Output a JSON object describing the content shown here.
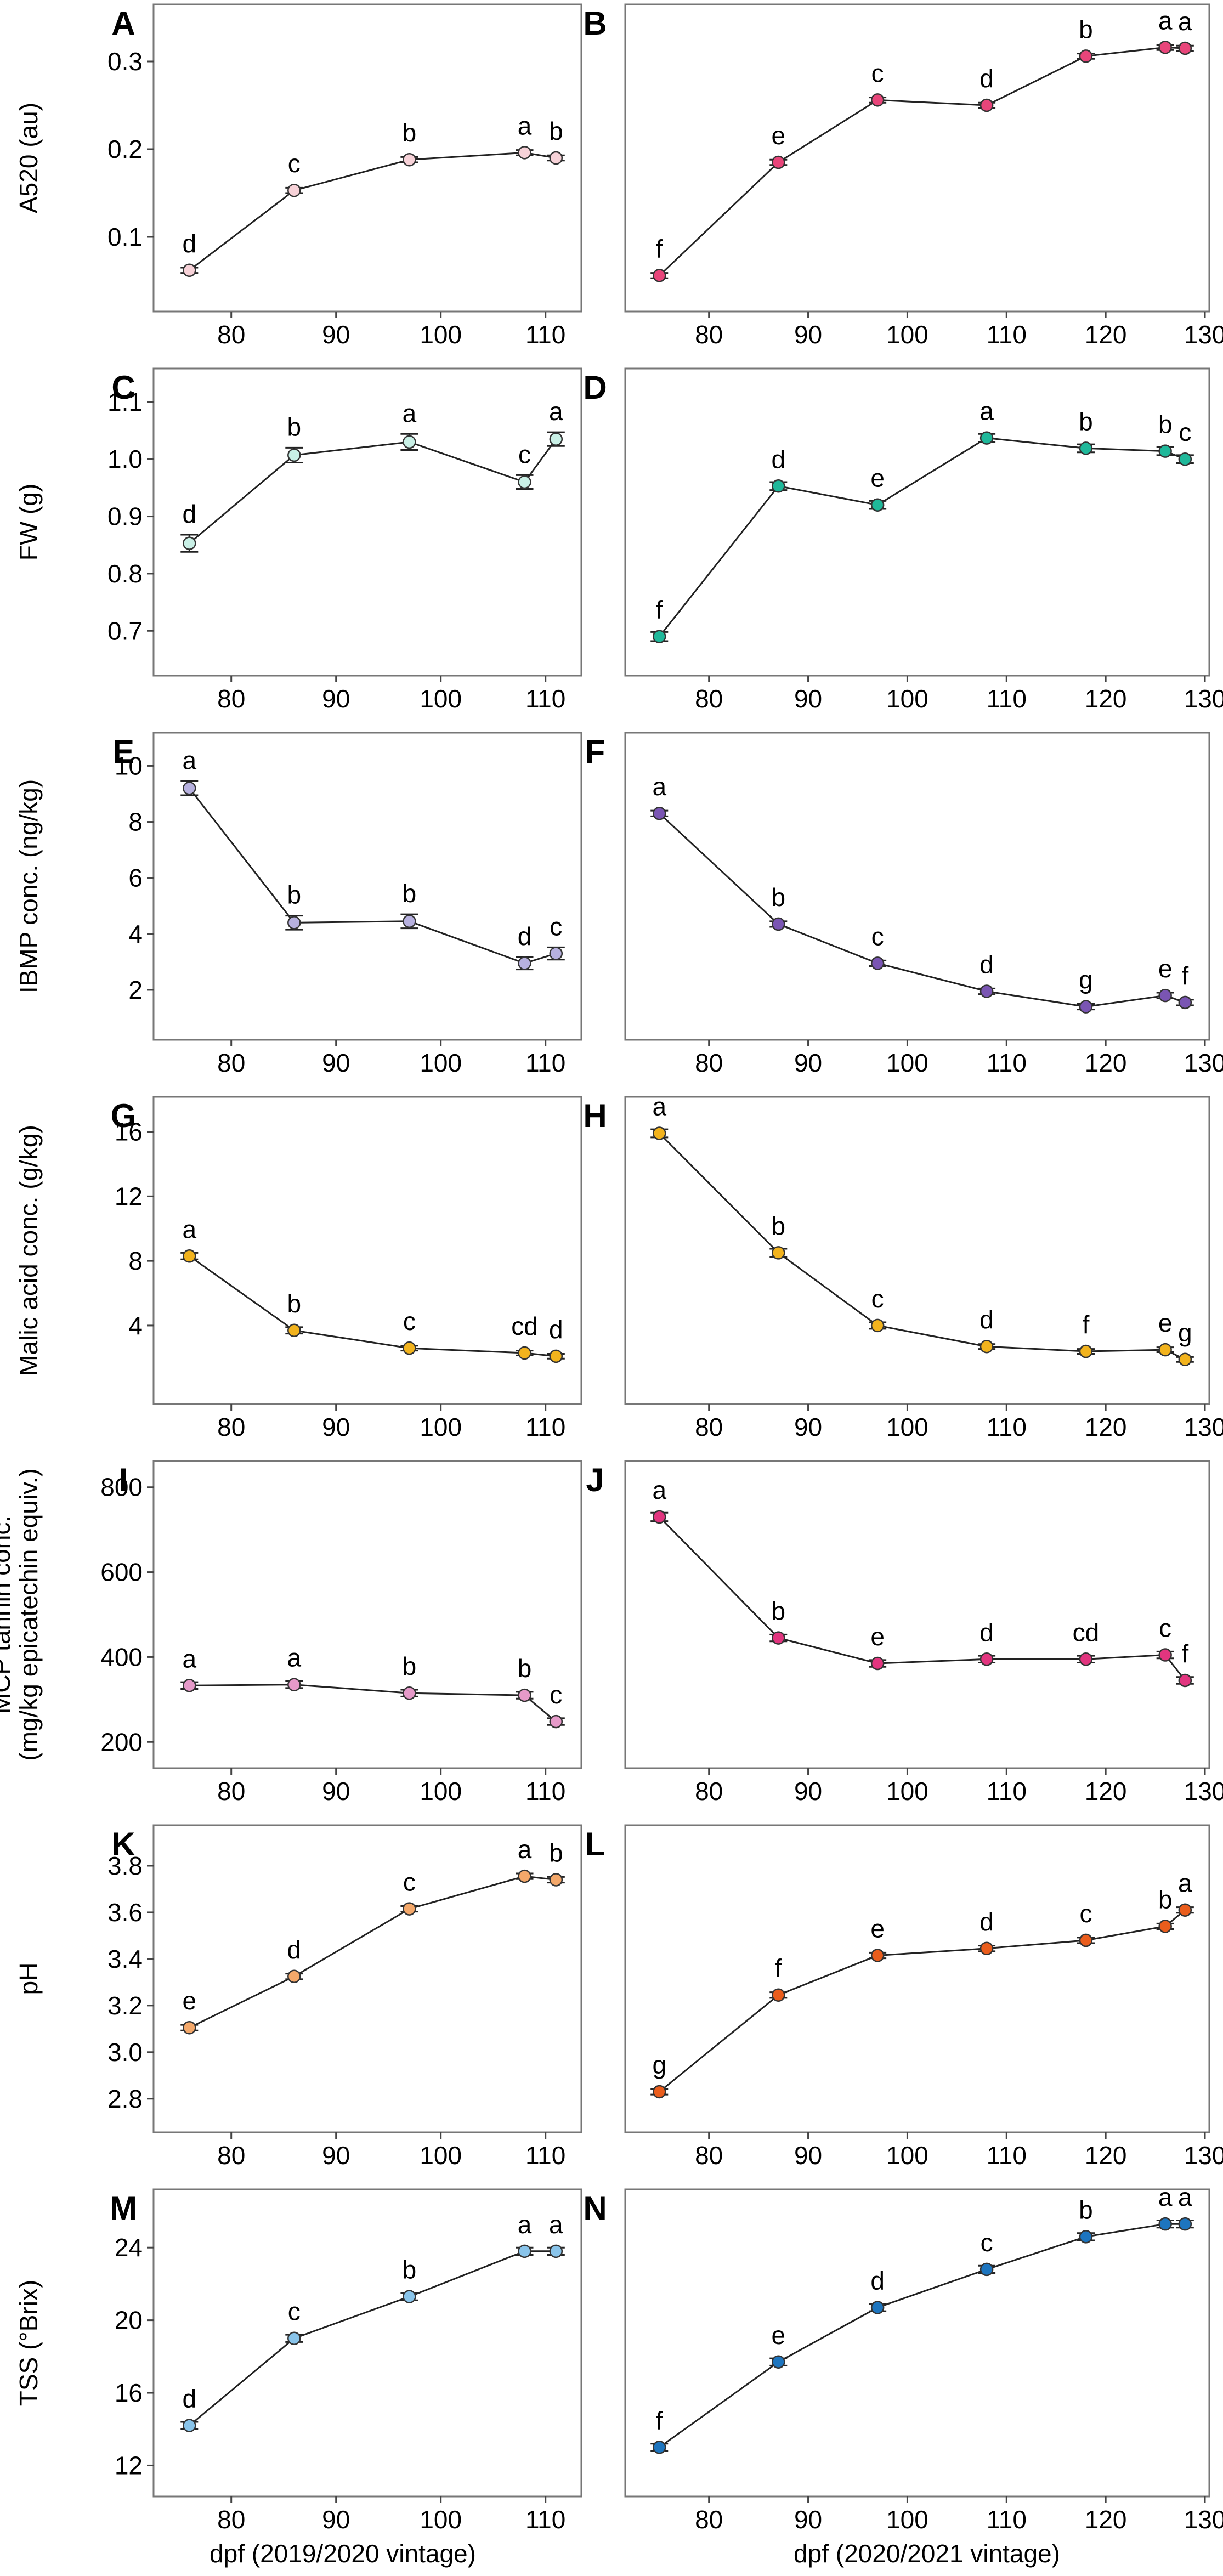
{
  "figure": {
    "x_label_left": "dpf (2019/2020 vintage)",
    "x_label_right": "dpf (2020/2021 vintage)"
  },
  "chart_data": [
    {
      "panel": "A",
      "type": "line",
      "row": 0,
      "col": 0,
      "ylabel": [
        "A520 (au)"
      ],
      "color": "#f7d2d8",
      "xlim": [
        73,
        113
      ],
      "xticks": [
        80,
        90,
        100,
        110
      ],
      "ylim": [
        0.04,
        0.34
      ],
      "yticks": [
        0.1,
        0.2,
        0.3
      ],
      "yfmt": 1,
      "x": [
        76,
        86,
        97,
        108,
        111
      ],
      "y": [
        0.062,
        0.153,
        0.188,
        0.196,
        0.19
      ],
      "err": [
        0.003,
        0.003,
        0.003,
        0.003,
        0.003
      ],
      "letters": [
        "d",
        "c",
        "b",
        "a",
        "b"
      ]
    },
    {
      "panel": "B",
      "type": "line",
      "row": 0,
      "col": 1,
      "ylabel": [],
      "color": "#e8457a",
      "xlim": [
        72,
        130
      ],
      "xticks": [
        80,
        90,
        100,
        110,
        120,
        130
      ],
      "ylim": [
        0.04,
        0.34
      ],
      "yticks": [],
      "yfmt": 0,
      "x": [
        75,
        87,
        97,
        108,
        118,
        126,
        128
      ],
      "y": [
        0.056,
        0.185,
        0.256,
        0.25,
        0.306,
        0.316,
        0.315
      ],
      "err": [
        0.003,
        0.003,
        0.003,
        0.003,
        0.003,
        0.003,
        0.003
      ],
      "letters": [
        "f",
        "e",
        "c",
        "d",
        "b",
        "a",
        "a"
      ]
    },
    {
      "panel": "C",
      "type": "line",
      "row": 1,
      "col": 0,
      "ylabel": [
        "FW (g)"
      ],
      "color": "#c9f0e6",
      "xlim": [
        73,
        113
      ],
      "xticks": [
        80,
        90,
        100,
        110
      ],
      "ylim": [
        0.66,
        1.12
      ],
      "yticks": [
        0.7,
        0.8,
        0.9,
        1.0,
        1.1
      ],
      "yfmt": 1,
      "x": [
        76,
        86,
        97,
        108,
        111
      ],
      "y": [
        0.853,
        1.007,
        1.03,
        0.96,
        1.035
      ],
      "err": [
        0.015,
        0.013,
        0.014,
        0.012,
        0.012
      ],
      "letters": [
        "d",
        "b",
        "a",
        "c",
        "a"
      ]
    },
    {
      "panel": "D",
      "type": "line",
      "row": 1,
      "col": 1,
      "ylabel": [],
      "color": "#1fb89a",
      "xlim": [
        72,
        130
      ],
      "xticks": [
        80,
        90,
        100,
        110,
        120,
        130
      ],
      "ylim": [
        0.66,
        1.12
      ],
      "yticks": [],
      "yfmt": 0,
      "x": [
        75,
        87,
        97,
        108,
        118,
        126,
        128
      ],
      "y": [
        0.69,
        0.953,
        0.92,
        1.037,
        1.019,
        1.014,
        1.0
      ],
      "err": [
        0.008,
        0.007,
        0.007,
        0.007,
        0.007,
        0.007,
        0.007
      ],
      "letters": [
        "f",
        "d",
        "e",
        "a",
        "b",
        "b",
        "c"
      ]
    },
    {
      "panel": "E",
      "type": "line",
      "row": 2,
      "col": 0,
      "ylabel": [
        "IBMP conc. (ng/kg)"
      ],
      "color": "#b7b1df",
      "xlim": [
        73,
        113
      ],
      "xticks": [
        80,
        90,
        100,
        110
      ],
      "ylim": [
        1.0,
        10.4
      ],
      "yticks": [
        2,
        4,
        6,
        8,
        10
      ],
      "yfmt": 0,
      "x": [
        76,
        86,
        97,
        108,
        111
      ],
      "y": [
        9.2,
        4.4,
        4.45,
        2.95,
        3.3
      ],
      "err": [
        0.25,
        0.25,
        0.25,
        0.22,
        0.22
      ],
      "letters": [
        "a",
        "b",
        "b",
        "d",
        "c"
      ]
    },
    {
      "panel": "F",
      "type": "line",
      "row": 2,
      "col": 1,
      "ylabel": [],
      "color": "#7a55b3",
      "xlim": [
        72,
        130
      ],
      "xticks": [
        80,
        90,
        100,
        110,
        120,
        130
      ],
      "ylim": [
        1.0,
        10.4
      ],
      "yticks": [],
      "yfmt": 0,
      "x": [
        75,
        87,
        97,
        108,
        118,
        126,
        128
      ],
      "y": [
        8.3,
        4.35,
        2.95,
        1.95,
        1.4,
        1.8,
        1.55
      ],
      "err": [
        0.1,
        0.1,
        0.1,
        0.1,
        0.1,
        0.1,
        0.1
      ],
      "letters": [
        "a",
        "b",
        "c",
        "d",
        "g",
        "e",
        "f"
      ]
    },
    {
      "panel": "G",
      "type": "line",
      "row": 3,
      "col": 0,
      "ylabel": [
        "Malic acid conc. (g/kg)"
      ],
      "color": "#f2b31d",
      "xlim": [
        73,
        113
      ],
      "xticks": [
        80,
        90,
        100,
        110
      ],
      "ylim": [
        0.5,
        16.8
      ],
      "yticks": [
        4,
        8,
        12,
        16
      ],
      "yfmt": 0,
      "x": [
        76,
        86,
        97,
        108,
        111
      ],
      "y": [
        8.3,
        3.7,
        2.6,
        2.3,
        2.1
      ],
      "err": [
        0.2,
        0.2,
        0.15,
        0.15,
        0.15
      ],
      "letters": [
        "a",
        "b",
        "c",
        "cd",
        "d"
      ]
    },
    {
      "panel": "H",
      "type": "line",
      "row": 3,
      "col": 1,
      "ylabel": [],
      "color": "#f2b31d",
      "xlim": [
        72,
        130
      ],
      "xticks": [
        80,
        90,
        100,
        110,
        120,
        130
      ],
      "ylim": [
        0.5,
        16.8
      ],
      "yticks": [],
      "yfmt": 0,
      "x": [
        75,
        87,
        97,
        108,
        118,
        126,
        128
      ],
      "y": [
        15.9,
        8.5,
        4.0,
        2.7,
        2.4,
        2.5,
        1.9
      ],
      "err": [
        0.25,
        0.25,
        0.2,
        0.15,
        0.15,
        0.15,
        0.15
      ],
      "letters": [
        "a",
        "b",
        "c",
        "d",
        "f",
        "e",
        "g"
      ]
    },
    {
      "panel": "I",
      "type": "line",
      "row": 4,
      "col": 0,
      "ylabel": [
        "MCP tannin conc.",
        "(mg/kg epicatechin equiv.)"
      ],
      "color": "#e69ac9",
      "xlim": [
        73,
        113
      ],
      "xticks": [
        80,
        90,
        100,
        110
      ],
      "ylim": [
        190,
        810
      ],
      "yticks": [
        200,
        400,
        600,
        800
      ],
      "yfmt": 0,
      "x": [
        76,
        86,
        97,
        108,
        111
      ],
      "y": [
        333,
        335,
        315,
        310,
        248
      ],
      "err": [
        8,
        8,
        8,
        8,
        8
      ],
      "letters": [
        "a",
        "a",
        "b",
        "b",
        "c"
      ]
    },
    {
      "panel": "J",
      "type": "line",
      "row": 4,
      "col": 1,
      "ylabel": [],
      "color": "#e2357f",
      "xlim": [
        72,
        130
      ],
      "xticks": [
        80,
        90,
        100,
        110,
        120,
        130
      ],
      "ylim": [
        190,
        810
      ],
      "yticks": [],
      "yfmt": 0,
      "x": [
        75,
        87,
        97,
        108,
        118,
        126,
        128
      ],
      "y": [
        730,
        445,
        385,
        395,
        395,
        405,
        345
      ],
      "err": [
        10,
        8,
        8,
        8,
        8,
        8,
        8
      ],
      "letters": [
        "a",
        "b",
        "e",
        "d",
        "cd",
        "c",
        "f"
      ]
    },
    {
      "panel": "K",
      "type": "line",
      "row": 5,
      "col": 0,
      "ylabel": [
        "pH"
      ],
      "color": "#f4a86a",
      "xlim": [
        73,
        113
      ],
      "xticks": [
        80,
        90,
        100,
        110
      ],
      "ylim": [
        2.75,
        3.88
      ],
      "yticks": [
        2.8,
        3.0,
        3.2,
        3.4,
        3.6,
        3.8
      ],
      "yfmt": 1,
      "x": [
        76,
        86,
        97,
        108,
        111
      ],
      "y": [
        3.105,
        3.325,
        3.615,
        3.755,
        3.74
      ],
      "err": [
        0.012,
        0.012,
        0.012,
        0.012,
        0.012
      ],
      "letters": [
        "e",
        "d",
        "c",
        "a",
        "b"
      ]
    },
    {
      "panel": "L",
      "type": "line",
      "row": 5,
      "col": 1,
      "ylabel": [],
      "color": "#ea5d1c",
      "xlim": [
        72,
        130
      ],
      "xticks": [
        80,
        90,
        100,
        110,
        120,
        130
      ],
      "ylim": [
        2.75,
        3.88
      ],
      "yticks": [],
      "yfmt": 0,
      "x": [
        75,
        87,
        97,
        108,
        118,
        126,
        128
      ],
      "y": [
        2.83,
        3.245,
        3.415,
        3.445,
        3.48,
        3.54,
        3.61
      ],
      "err": [
        0.012,
        0.012,
        0.012,
        0.012,
        0.012,
        0.012,
        0.012
      ],
      "letters": [
        "g",
        "f",
        "e",
        "d",
        "c",
        "b",
        "a"
      ]
    },
    {
      "panel": "M",
      "type": "line",
      "row": 6,
      "col": 0,
      "ylabel": [
        "TSS (°Brix)"
      ],
      "color": "#89c4ea",
      "xlim": [
        73,
        113
      ],
      "xticks": [
        80,
        90,
        100,
        110
      ],
      "ylim": [
        11.5,
        26.0
      ],
      "yticks": [
        12,
        16,
        20,
        24
      ],
      "yfmt": 0,
      "x": [
        76,
        86,
        97,
        108,
        111
      ],
      "y": [
        14.2,
        19.0,
        21.3,
        23.8,
        23.8
      ],
      "err": [
        0.2,
        0.2,
        0.2,
        0.2,
        0.2
      ],
      "letters": [
        "d",
        "c",
        "b",
        "a",
        "a"
      ]
    },
    {
      "panel": "N",
      "type": "line",
      "row": 6,
      "col": 1,
      "ylabel": [],
      "color": "#1d75bf",
      "xlim": [
        72,
        130
      ],
      "xticks": [
        80,
        90,
        100,
        110,
        120,
        130
      ],
      "ylim": [
        11.5,
        26.0
      ],
      "yticks": [],
      "yfmt": 0,
      "x": [
        75,
        87,
        97,
        108,
        118,
        126,
        128
      ],
      "y": [
        13.0,
        17.7,
        20.7,
        22.8,
        24.6,
        25.3,
        25.3
      ],
      "err": [
        0.2,
        0.2,
        0.2,
        0.2,
        0.2,
        0.2,
        0.2
      ],
      "letters": [
        "f",
        "e",
        "d",
        "c",
        "b",
        "a",
        "a"
      ]
    }
  ]
}
